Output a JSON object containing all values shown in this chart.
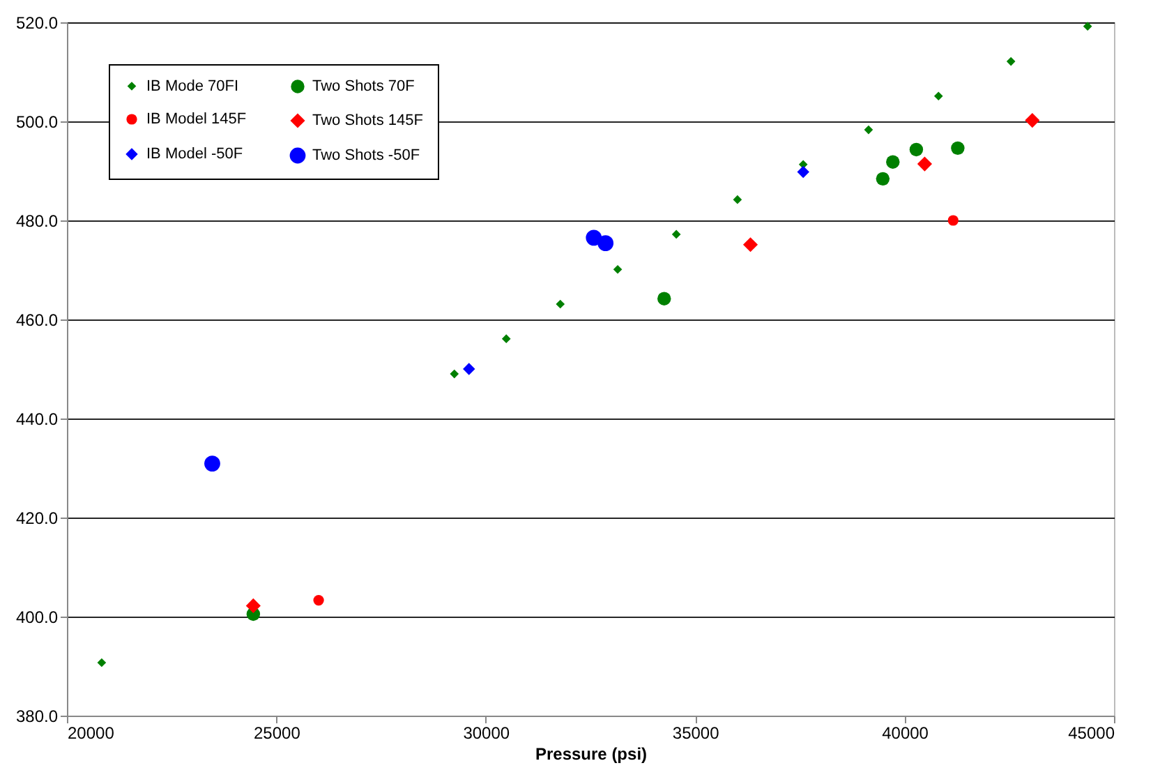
{
  "chart_data": {
    "type": "scatter",
    "xlabel": "Pressure (psi)",
    "xlim": [
      20000,
      45000
    ],
    "xticks": [
      20000,
      25000,
      30000,
      35000,
      40000,
      45000
    ],
    "ylim": [
      380,
      520
    ],
    "yticks": [
      {
        "value": 380,
        "label": "380.0"
      },
      {
        "value": 400,
        "label": "400.0"
      },
      {
        "value": 420,
        "label": "420.0"
      },
      {
        "value": 440,
        "label": "440.0"
      },
      {
        "value": 460,
        "label": "460.0"
      },
      {
        "value": 480,
        "label": "480.0"
      },
      {
        "value": 500,
        "label": "500.0"
      },
      {
        "value": 520,
        "label": "520.0"
      }
    ],
    "grid": "y",
    "legend": "top left",
    "series": [
      {
        "name": "IB Mode 70FI",
        "color": "#008000",
        "marker": "diamond",
        "x": [
          20830,
          29250,
          30490,
          31780,
          33150,
          34550,
          36010,
          37580,
          39140,
          40810,
          42540,
          44370
        ],
        "values": [
          390.7,
          449.0,
          456.1,
          463.1,
          470.1,
          477.2,
          484.2,
          491.3,
          498.3,
          505.1,
          512.1,
          519.2
        ]
      },
      {
        "name": "IB Model 145F",
        "color": "#ff0000",
        "marker": "circle",
        "x": [
          26010,
          41160
        ],
        "values": [
          403.3,
          480.0
        ]
      },
      {
        "name": "IB Model -50F",
        "color": "#0000ff",
        "marker": "diamond",
        "x": [
          29600,
          37580
        ],
        "values": [
          450.0,
          489.8
        ]
      },
      {
        "name": "Two Shots 70F",
        "color": "#008000",
        "marker": "circle",
        "x": [
          24450,
          34260,
          39480,
          39720,
          40280,
          41270
        ],
        "values": [
          400.5,
          464.2,
          488.4,
          491.8,
          494.3,
          494.6
        ]
      },
      {
        "name": "Two Shots 145F",
        "color": "#ff0000",
        "marker": "diamond",
        "x": [
          24450,
          36320,
          40480,
          43050
        ],
        "values": [
          402.2,
          475.1,
          491.4,
          500.2
        ]
      },
      {
        "name": "Two Shots -50F",
        "color": "#0000ff",
        "marker": "circle",
        "x": [
          23470,
          32580,
          32860
        ],
        "values": [
          430.9,
          476.5,
          475.4
        ]
      }
    ]
  }
}
